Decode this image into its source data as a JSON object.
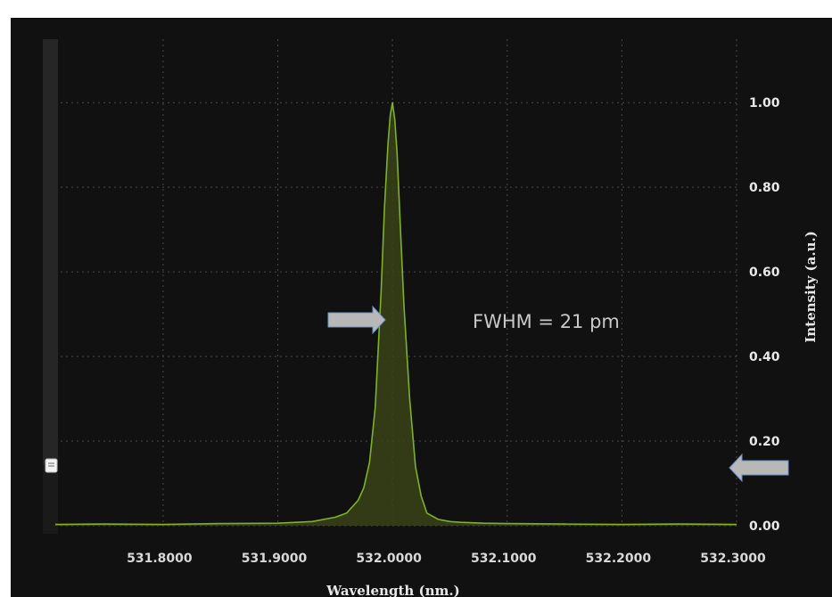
{
  "chart_data": {
    "type": "line",
    "title": "",
    "xlabel": "Wavelength (nm.)",
    "ylabel": "Intensity (a.u.)",
    "xlim": [
      531.706,
      532.3
    ],
    "ylim": [
      0,
      1.15
    ],
    "x_ticks": [
      "531.8000",
      "531.9000",
      "532.0000",
      "532.1000",
      "532.2000",
      "532.3000"
    ],
    "y_ticks": [
      "0.00",
      "0.20",
      "0.40",
      "0.60",
      "0.80",
      "1.00"
    ],
    "grid": true,
    "legend": "none",
    "annotation": "FWHM = 21 pm",
    "colors": {
      "line": "#7fb02a",
      "fill": "#3a4318",
      "background": "#111111",
      "grid": "#4a4a4a",
      "arrow": "#b8b8b8",
      "arrow_outline": "#6a8fd0"
    },
    "series": [
      {
        "x": [
          531.706,
          531.75,
          531.8,
          531.85,
          531.9,
          531.93,
          531.95,
          531.96,
          531.97,
          531.975,
          531.98,
          531.985,
          531.99,
          531.993,
          531.996,
          531.998,
          532.0,
          532.002,
          532.004,
          532.007,
          532.01,
          532.015,
          532.02,
          532.025,
          532.03,
          532.04,
          532.05,
          532.06,
          532.08,
          532.1,
          532.15,
          532.2,
          532.25,
          532.3
        ],
        "y": [
          0.003,
          0.004,
          0.003,
          0.005,
          0.006,
          0.01,
          0.02,
          0.03,
          0.06,
          0.09,
          0.15,
          0.28,
          0.55,
          0.75,
          0.9,
          0.97,
          1.0,
          0.96,
          0.88,
          0.7,
          0.52,
          0.3,
          0.14,
          0.07,
          0.03,
          0.015,
          0.01,
          0.008,
          0.006,
          0.005,
          0.004,
          0.003,
          0.004,
          0.003
        ]
      }
    ]
  }
}
